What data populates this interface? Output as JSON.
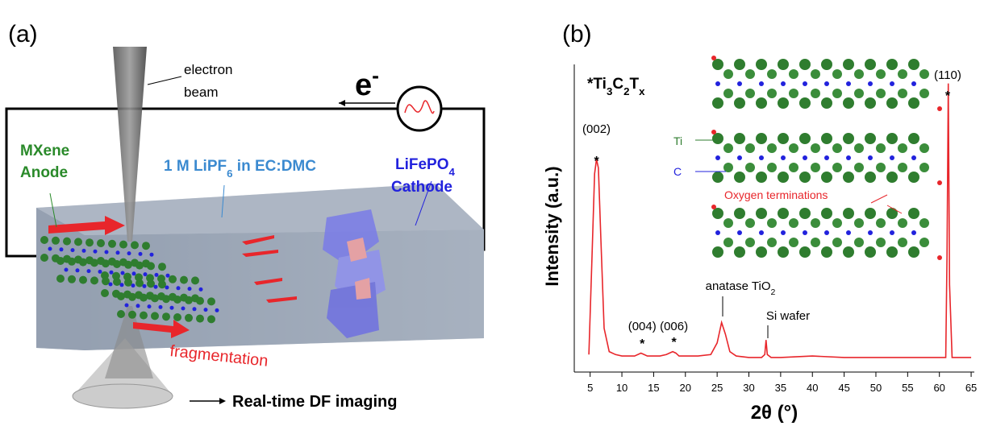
{
  "panel_a": {
    "label": "(a)",
    "beam": [
      "electron",
      "beam"
    ],
    "electron": [
      "e",
      "-"
    ],
    "anode": [
      "MXene",
      "Anode"
    ],
    "electrolyte": [
      "1 M LiPF",
      "6",
      " in EC:DMC"
    ],
    "cathode": [
      [
        "LiFePO",
        "4"
      ],
      [
        "Cathode"
      ]
    ],
    "fragmentation": "fragmentation",
    "imaging": "Real-time DF imaging"
  },
  "chart_data": {
    "type": "line",
    "panel_label": "(b)",
    "title": [
      "*Ti",
      "3",
      "C",
      "2",
      "T",
      "x"
    ],
    "y_label": "Intensity (a.u.)",
    "x_label": "2θ (°)",
    "xlim": [
      2.5,
      65.5
    ],
    "xticks": [
      5,
      10,
      15,
      20,
      25,
      30,
      35,
      40,
      45,
      50,
      55,
      60,
      65
    ],
    "ylim": [
      0,
      100
    ],
    "peak_labels": [
      "(002)",
      "(004)",
      "(006)",
      "(110)"
    ],
    "peak_marker": "*",
    "annotations": [
      [
        "anatase TiO",
        "2"
      ],
      [
        "Si wafer"
      ]
    ],
    "inset_labels": [
      "Ti",
      "C",
      "Oxygen terminations"
    ],
    "series": [
      {
        "color": "#e8262b",
        "x": [
          4.8,
          5.3,
          5.7,
          6.0,
          6.3,
          6.7,
          7.2,
          8,
          9,
          10,
          11,
          12,
          13,
          13.5,
          14,
          15,
          16,
          17,
          18,
          18.5,
          19,
          20,
          22,
          24,
          25,
          25.7,
          26.3,
          27,
          28,
          30,
          32,
          32.5,
          32.7,
          32.9,
          33.5,
          35,
          40,
          45,
          50,
          55,
          60,
          61,
          61.2,
          61.4,
          61.6,
          62,
          63,
          64,
          65
        ],
        "values": [
          6,
          40,
          68,
          73,
          70,
          45,
          15,
          7,
          6,
          5.5,
          5.5,
          5.5,
          6.5,
          6,
          5.5,
          5.5,
          5.5,
          6,
          7,
          6.5,
          5.5,
          5.5,
          5.5,
          6,
          10,
          17,
          13,
          7,
          5.5,
          5,
          5,
          6,
          11,
          6,
          5,
          5,
          5.5,
          5,
          5,
          5,
          5,
          5,
          40,
          99,
          30,
          5,
          5,
          5,
          5
        ]
      }
    ]
  }
}
